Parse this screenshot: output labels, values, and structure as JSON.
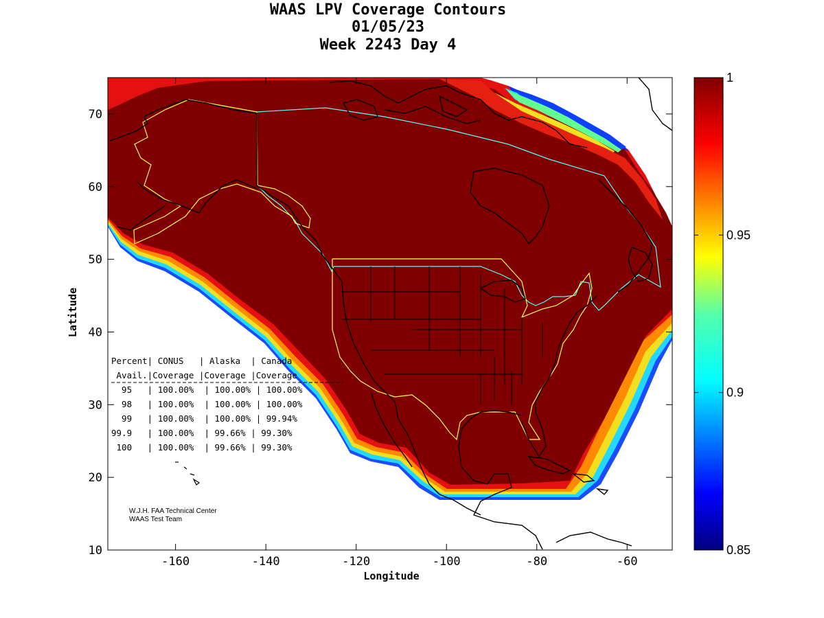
{
  "title": {
    "line1": "WAAS LPV Coverage Contours",
    "line2": "01/05/23",
    "line3": "Week 2243 Day 4"
  },
  "axes": {
    "xlabel": "Longitude",
    "ylabel": "Latitude",
    "xlim": [
      -175,
      -50
    ],
    "ylim": [
      10,
      75
    ],
    "xticks": [
      -160,
      -140,
      -120,
      -100,
      -80,
      -60
    ],
    "yticks": [
      10,
      20,
      30,
      40,
      50,
      60,
      70
    ]
  },
  "colorbar": {
    "range": [
      0.85,
      1
    ],
    "ticks": [
      "1",
      "0.95",
      "0.9",
      "0.85"
    ],
    "colormap": "jet"
  },
  "coverage_table": {
    "header1": "Percent| CONUS   | Alaska  | Canada",
    "header2": " Avail.|Coverage |Coverage |Coverage",
    "rows": [
      "  95   | 100.00%  | 100.00% | 100.00%",
      "  98   | 100.00%  | 100.00% | 100.00%",
      "  99   | 100.00%  | 100.00% | 99.94%",
      "99.9   | 100.00%  | 99.66% | 99.30%",
      " 100   | 100.00%  | 99.66% | 99.30%"
    ]
  },
  "credit": {
    "line1": "W.J.H. FAA Technical Center",
    "line2": "WAAS Test Team"
  },
  "colors": {
    "coverage_full": "#800000",
    "alaska_boundary": "#ffff55",
    "canada_boundary": "#55ffff",
    "conus_boundary": "#ffff55",
    "coastline": "#000000"
  }
}
